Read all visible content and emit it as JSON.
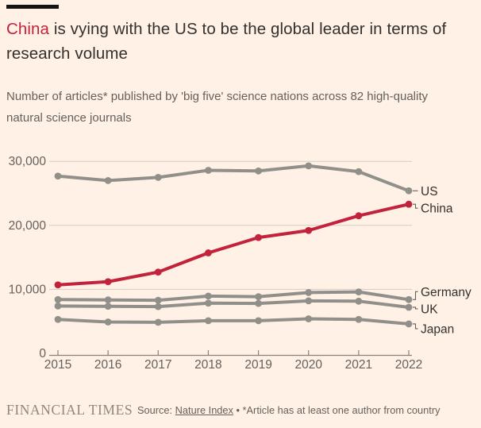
{
  "header": {
    "title_highlight": "China",
    "title_rest": " is vying with the US to be the global leader in terms of research volume",
    "subtitle": "Number of articles* published by 'big five' science nations across 82 high-quality natural science journals"
  },
  "footer": {
    "brand": "FINANCIAL TIMES",
    "source_prefix": "Source: ",
    "source_link": "Nature Index",
    "source_suffix": " • *Article has at least one author from country"
  },
  "colors": {
    "background": "#fff1e5",
    "accent_red": "#c3223c",
    "line_gray": "#918f8a",
    "text_dark": "#33302e",
    "text_muted": "#66605c",
    "gridline": "#d6ccc1",
    "axis": "#8a8178"
  },
  "chart_data": {
    "type": "line",
    "title": "China is vying with the US to be the global leader in terms of research volume",
    "subtitle": "Number of articles* published by 'big five' science nations across 82 high-quality natural science journals",
    "categories": [
      "2015",
      "2016",
      "2017",
      "2018",
      "2019",
      "2020",
      "2021",
      "2022"
    ],
    "series": [
      {
        "name": "US",
        "color": "#918f8a",
        "values": [
          27700,
          27000,
          27500,
          28600,
          28500,
          29300,
          28400,
          25400
        ]
      },
      {
        "name": "China",
        "color": "#c3223c",
        "values": [
          10700,
          11200,
          12700,
          15700,
          18100,
          19200,
          21500,
          23300
        ]
      },
      {
        "name": "Germany",
        "color": "#918f8a",
        "values": [
          8400,
          8350,
          8300,
          8950,
          8850,
          9500,
          9600,
          8400
        ]
      },
      {
        "name": "UK",
        "color": "#918f8a",
        "values": [
          7400,
          7350,
          7300,
          7850,
          7800,
          8200,
          8150,
          7200
        ]
      },
      {
        "name": "Japan",
        "color": "#918f8a",
        "values": [
          5300,
          4900,
          4850,
          5100,
          5100,
          5400,
          5300,
          4600
        ]
      }
    ],
    "ylim": [
      0,
      30000
    ],
    "yticks": [
      {
        "label": "30,000",
        "value": 30000
      },
      {
        "label": "20,000",
        "value": 20000
      },
      {
        "label": "10,000",
        "value": 10000
      },
      {
        "label": "0",
        "value": 0
      }
    ],
    "grid": "horizontal",
    "legend_position": "line-end-labels-right"
  }
}
